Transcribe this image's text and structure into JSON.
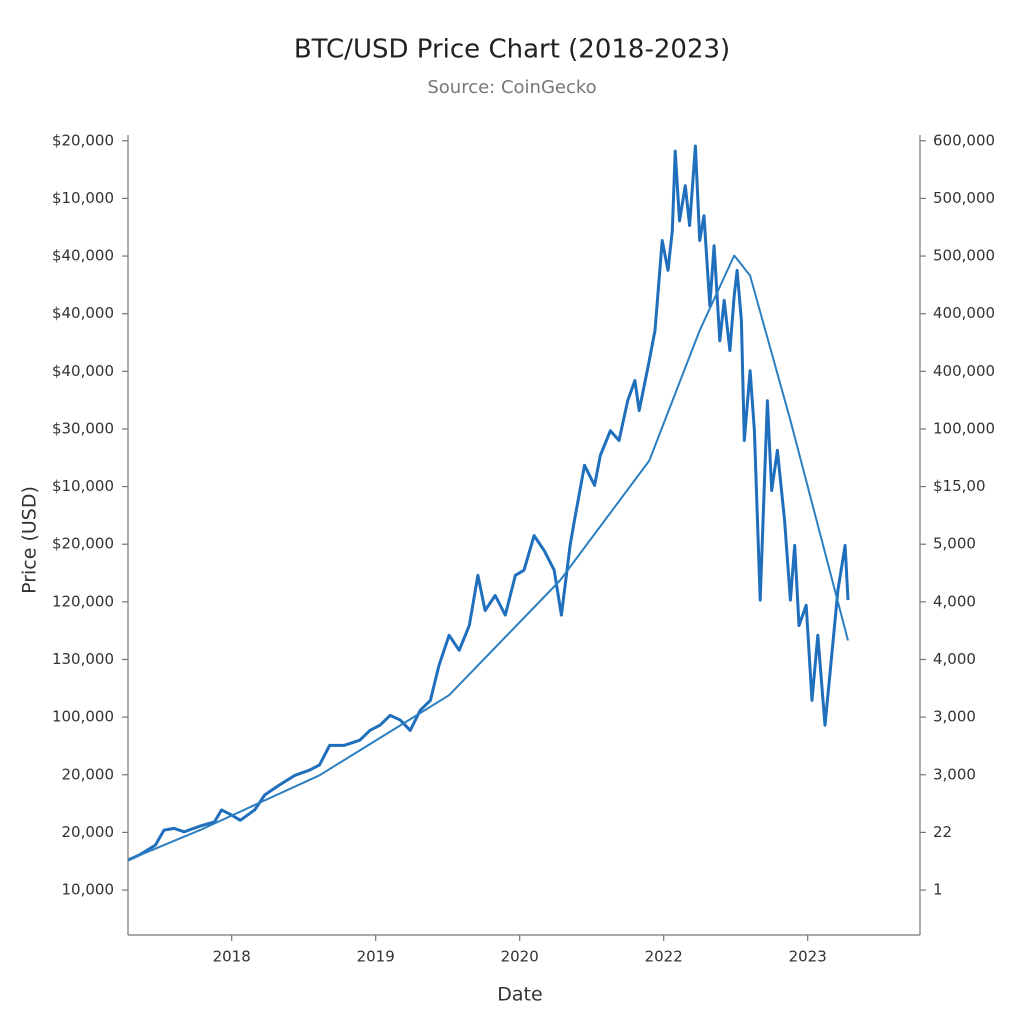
{
  "chart_data": {
    "type": "line",
    "title": "BTC/USD Price Chart (2018-2023)",
    "subtitle": "Source: CoinGecko",
    "y_label": "Price (USD)",
    "x_label": "Date",
    "xlim": [
      -0.72,
      4.78
    ],
    "xticks": [
      {
        "value": 0,
        "label": "2018"
      },
      {
        "value": 1,
        "label": "2019"
      },
      {
        "value": 2,
        "label": "2020"
      },
      {
        "value": 3,
        "label": "2022"
      },
      {
        "value": 4,
        "label": "2023"
      }
    ],
    "ylim": [
      -0.78,
      13.1
    ],
    "yticks": [
      {
        "value": 0,
        "label": "10,000"
      },
      {
        "value": 1,
        "label": "20,000"
      },
      {
        "value": 2,
        "label": "20,000"
      },
      {
        "value": 3,
        "label": "100,000"
      },
      {
        "value": 4,
        "label": "130,000"
      },
      {
        "value": 5,
        "label": "120,000"
      },
      {
        "value": 6,
        "label": "$20,000"
      },
      {
        "value": 7,
        "label": "$10,000"
      },
      {
        "value": 8,
        "label": "$30,000"
      },
      {
        "value": 9,
        "label": "$40,000"
      },
      {
        "value": 10,
        "label": "$40,000"
      },
      {
        "value": 11,
        "label": "$40,000"
      },
      {
        "value": 12,
        "label": "$10,000"
      },
      {
        "value": 13,
        "label": "$20,000"
      }
    ],
    "y2lim": [
      -0.78,
      13.1
    ],
    "y2ticks": [
      {
        "value": 0,
        "label": "1"
      },
      {
        "value": 1,
        "label": "22"
      },
      {
        "value": 2,
        "label": "3,000"
      },
      {
        "value": 3,
        "label": "3,000"
      },
      {
        "value": 4,
        "label": "4,000"
      },
      {
        "value": 5,
        "label": "4,000"
      },
      {
        "value": 6,
        "label": "5,000"
      },
      {
        "value": 7,
        "label": "$15,00"
      },
      {
        "value": 8,
        "label": "100,000"
      },
      {
        "value": 9,
        "label": "400,000"
      },
      {
        "value": 10,
        "label": "400,000"
      },
      {
        "value": 11,
        "label": "500,000"
      },
      {
        "value": 12,
        "label": "500,000"
      },
      {
        "value": 13,
        "label": "600,000"
      }
    ],
    "series": [
      {
        "color": "#1f6fbd",
        "axis": "y",
        "x": [
          -0.72,
          -0.64,
          -0.53,
          -0.47,
          -0.4,
          -0.33,
          -0.22,
          -0.12,
          -0.07,
          0,
          0.06,
          0.16,
          0.23,
          0.33,
          0.44,
          0.54,
          0.61,
          0.68,
          0.78,
          0.89,
          0.96,
          1.03,
          1.1,
          1.17,
          1.24,
          1.31,
          1.38,
          1.44,
          1.51,
          1.58,
          1.65,
          1.71,
          1.76,
          1.83,
          1.9,
          1.97,
          2.03,
          2.1,
          2.17,
          2.24,
          2.29,
          2.35,
          2.38,
          2.45,
          2.52,
          2.56,
          2.63,
          2.69,
          2.75,
          2.8,
          2.83,
          2.9,
          2.94,
          2.99,
          3.03,
          3.06,
          3.08,
          3.11,
          3.15,
          3.18,
          3.22,
          3.25,
          3.28,
          3.32,
          3.35,
          3.39,
          3.42,
          3.46,
          3.49,
          3.51,
          3.54,
          3.56,
          3.6,
          3.63,
          3.67,
          3.7,
          3.72,
          3.75,
          3.79,
          3.84,
          3.88,
          3.91,
          3.94,
          3.99,
          4.03,
          4.07,
          4.12,
          4.17,
          4.21,
          4.26,
          4.28
        ],
        "values": [
          0.52,
          0.61,
          0.78,
          1.04,
          1.07,
          1.01,
          1.11,
          1.18,
          1.39,
          1.3,
          1.21,
          1.39,
          1.65,
          1.82,
          1.99,
          2.08,
          2.17,
          2.51,
          2.51,
          2.6,
          2.77,
          2.86,
          3.03,
          2.95,
          2.77,
          3.12,
          3.29,
          3.9,
          4.42,
          4.16,
          4.59,
          5.46,
          4.85,
          5.11,
          4.77,
          5.46,
          5.55,
          6.15,
          5.89,
          5.55,
          4.77,
          5.98,
          6.41,
          7.37,
          7.02,
          7.54,
          7.97,
          7.8,
          8.49,
          8.84,
          8.32,
          9.19,
          9.71,
          11.27,
          10.75,
          11.44,
          12.82,
          11.61,
          12.22,
          11.53,
          12.91,
          11.27,
          11.7,
          10.14,
          11.18,
          9.53,
          10.23,
          9.36,
          10.31,
          10.75,
          9.88,
          7.8,
          9.01,
          7.97,
          5.03,
          7.11,
          8.49,
          6.93,
          7.63,
          6.41,
          5.03,
          5.98,
          4.59,
          4.94,
          3.29,
          4.42,
          2.86,
          4.16,
          5.2,
          5.98,
          5.03
        ]
      },
      {
        "color": "#2b7fc0",
        "axis": "y2",
        "x": [
          -0.72,
          -0.22,
          0.61,
          1.51,
          2.28,
          2.9,
          3.25,
          3.49,
          3.6,
          3.88,
          4.28
        ],
        "values": [
          0.52,
          1.04,
          1.99,
          3.38,
          5.37,
          7.45,
          9.71,
          11.01,
          10.66,
          8.15,
          4.33
        ]
      }
    ]
  }
}
